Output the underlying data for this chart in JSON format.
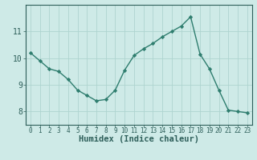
{
  "x": [
    0,
    1,
    2,
    3,
    4,
    5,
    6,
    7,
    8,
    9,
    10,
    11,
    12,
    13,
    14,
    15,
    16,
    17,
    18,
    19,
    20,
    21,
    22,
    23
  ],
  "y": [
    10.2,
    9.9,
    9.6,
    9.5,
    9.2,
    8.8,
    8.6,
    8.4,
    8.45,
    8.8,
    9.55,
    10.1,
    10.35,
    10.55,
    10.8,
    11.0,
    11.2,
    11.55,
    10.15,
    9.6,
    8.8,
    8.05,
    8.0,
    7.95
  ],
  "line_color": "#2e7d6e",
  "marker": "D",
  "marker_size": 2.2,
  "bg_color": "#ceeae7",
  "grid_color": "#aed4d0",
  "tick_color": "#2e5f5a",
  "xlabel": "Humidex (Indice chaleur)",
  "xlabel_fontsize": 7.5,
  "ylim": [
    7.5,
    12.0
  ],
  "xlim": [
    -0.5,
    23.5
  ],
  "yticks": [
    8,
    9,
    10,
    11
  ],
  "xticks": [
    0,
    1,
    2,
    3,
    4,
    5,
    6,
    7,
    8,
    9,
    10,
    11,
    12,
    13,
    14,
    15,
    16,
    17,
    18,
    19,
    20,
    21,
    22,
    23
  ],
  "tick_fontsize": 5.5,
  "linewidth": 1.0,
  "title": ""
}
